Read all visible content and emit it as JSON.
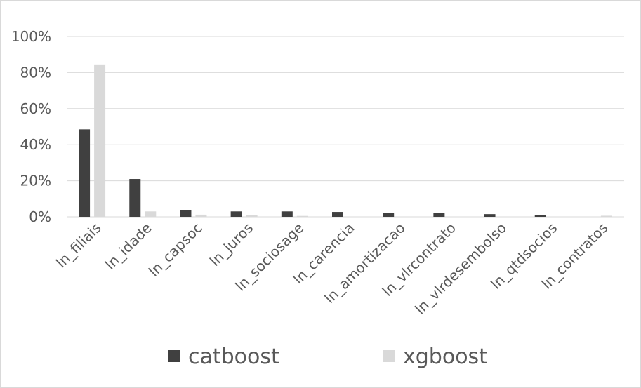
{
  "chart_data": {
    "type": "bar",
    "categories": [
      "ln_filiais",
      "ln_idade",
      "ln_capsoc",
      "ln_juros",
      "ln_sociosage",
      "ln_carencia",
      "ln_amortizacao",
      "ln_vlrcontrato",
      "ln_vlrdesembolso",
      "ln_qtdsocios",
      "ln_contratos"
    ],
    "series": [
      {
        "name": "catboost",
        "values": [
          48.5,
          21,
          3.5,
          3,
          3,
          2.7,
          2.3,
          2,
          1.5,
          0.8,
          0
        ],
        "color": "#404040"
      },
      {
        "name": "xgboost",
        "values": [
          84.5,
          3,
          1.2,
          1,
          0.5,
          0,
          0,
          0,
          0,
          0,
          0.6
        ],
        "color": "#d9d9d9"
      }
    ],
    "yticks": [
      "0%",
      "20%",
      "40%",
      "60%",
      "80%",
      "100%"
    ],
    "ylim": [
      0,
      100
    ],
    "grid": true,
    "legend_position": "bottom"
  }
}
